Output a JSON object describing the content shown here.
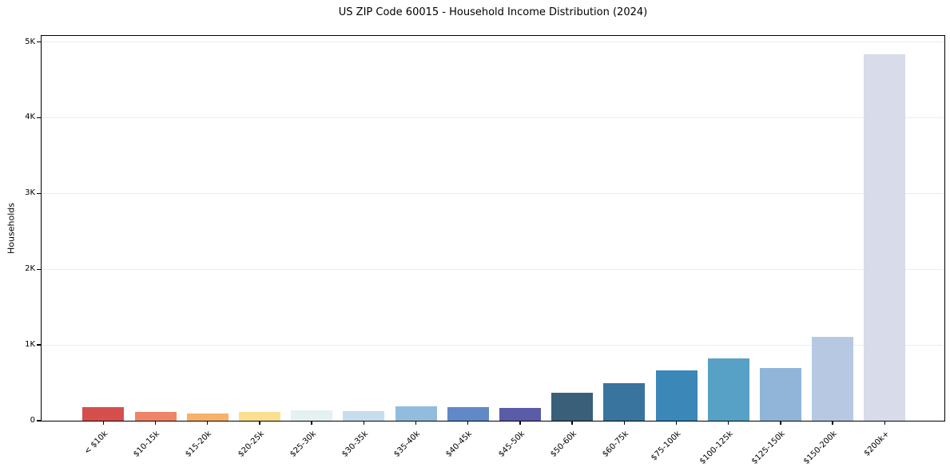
{
  "figure": {
    "background": "#ffffff",
    "grid_color": "#ececec",
    "axis_color": "#000000"
  },
  "chart_data": {
    "type": "bar",
    "title": "US ZIP Code 60015 - Household Income Distribution (2024)",
    "xlabel": "",
    "ylabel": "Households",
    "ylim": [
      0,
      5000
    ],
    "grid": true,
    "legend": null,
    "ytick_values": [
      0,
      1000,
      2000,
      3000,
      4000,
      5000
    ],
    "ytick_labels": [
      "0",
      "1K",
      "2K",
      "3K",
      "4K",
      "5K"
    ],
    "categories": [
      "< $10k",
      "$10-15k",
      "$15-20k",
      "$20-25k",
      "$25-30k",
      "$30-35k",
      "$35-40k",
      "$40-45k",
      "$45-50k",
      "$50-60k",
      "$60-75k",
      "$75-100k",
      "$100-125k",
      "$125-150k",
      "$150-200k",
      "$200k+"
    ],
    "values": [
      180,
      115,
      100,
      120,
      140,
      130,
      185,
      180,
      170,
      370,
      500,
      660,
      820,
      700,
      1110,
      4840
    ],
    "bar_colors": [
      "#d5504d",
      "#ee8568",
      "#f6b16a",
      "#fbdf90",
      "#e5f0f2",
      "#c6dded",
      "#92bcdd",
      "#6189c5",
      "#5a5ca8",
      "#3a5f78",
      "#38749d",
      "#3a87b8",
      "#57a0c6",
      "#90b5d8",
      "#b7c9e2",
      "#d8dbe9"
    ]
  }
}
